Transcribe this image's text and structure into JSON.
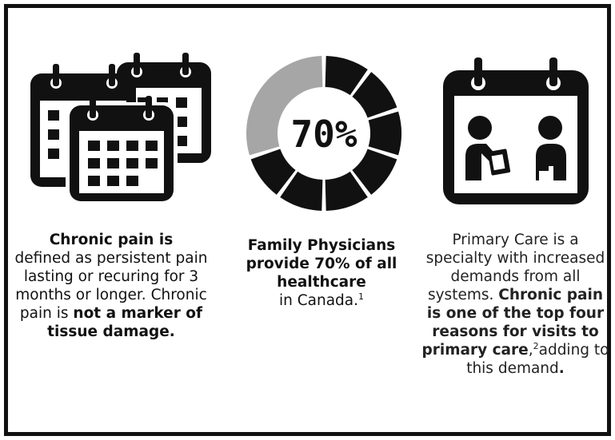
{
  "colors": {
    "ink": "#111111",
    "ring_filled": "#111111",
    "ring_remaining": "#a6a6a6",
    "frame_border": "#111111"
  },
  "icons": {
    "left": "calendars-stack-icon",
    "middle": "percentage-ring-icon",
    "right": "calendar-doctor-patient-icon"
  },
  "ring": {
    "label": "70%",
    "percent": 70
  },
  "columns": [
    {
      "bold_1": "Chronic pain is",
      "text_1": "defined as persistent pain lasting or recuring for 3 months or longer. Chronic pain is ",
      "bold_2": "not a marker of tissue damage."
    },
    {
      "bold_1": "Family Physicians provide 70% of all healthcare",
      "text_1": "in Canada.",
      "footnote": "1"
    },
    {
      "text_1": "Primary Care is a specialty with increased demands from all systems. ",
      "bold_1": "Chronic pain is one of the top four reasons for visits to primary care",
      "comma": ",",
      "footnote": "2",
      "text_2": "adding to this demand",
      "bold_end": "."
    }
  ]
}
